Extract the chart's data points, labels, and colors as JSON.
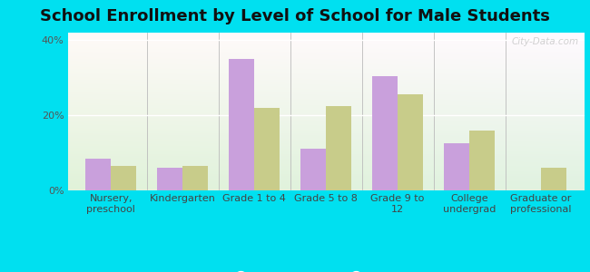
{
  "title": "School Enrollment by Level of School for Male Students",
  "categories": [
    "Nursery,\npreschool",
    "Kindergarten",
    "Grade 1 to 4",
    "Grade 5 to 8",
    "Grade 9 to\n12",
    "College\nundergrad",
    "Graduate or\nprofessional"
  ],
  "cloverdale": [
    8.5,
    6.0,
    35.0,
    11.0,
    30.5,
    12.5,
    0.0
  ],
  "indiana": [
    6.5,
    6.5,
    22.0,
    22.5,
    25.5,
    16.0,
    6.0
  ],
  "cloverdale_color": "#c9a0dc",
  "indiana_color": "#c8cc8a",
  "background_outer": "#00e0f0",
  "ylim": [
    0,
    42
  ],
  "yticks": [
    0,
    20,
    40
  ],
  "ytick_labels": [
    "0%",
    "20%",
    "40%"
  ],
  "bar_width": 0.35,
  "title_fontsize": 13,
  "legend_fontsize": 9.5,
  "tick_fontsize": 8.0
}
